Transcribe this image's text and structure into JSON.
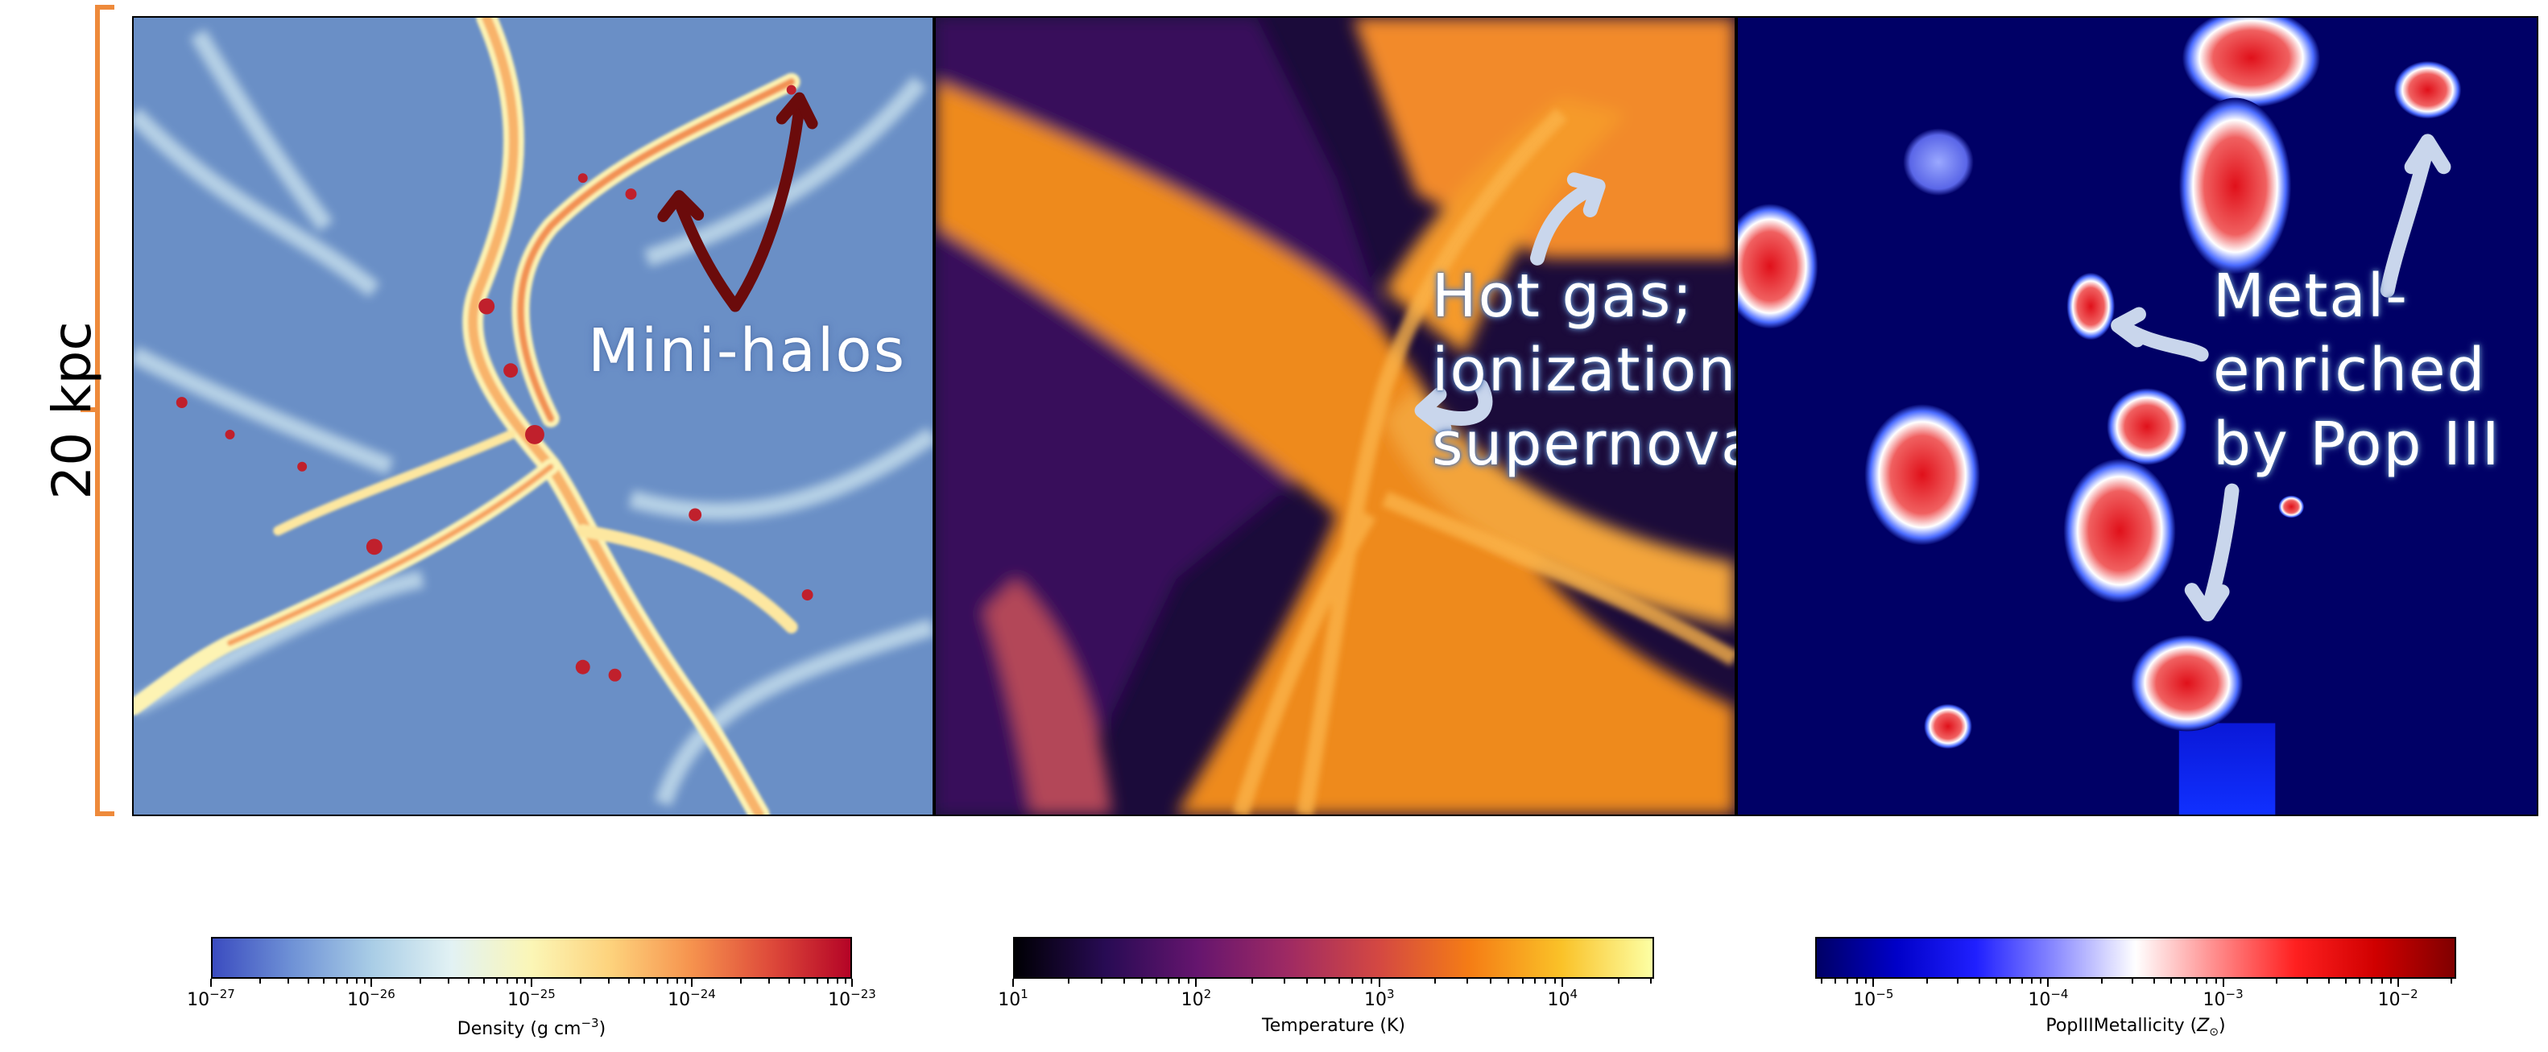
{
  "scale_bar": {
    "label": "20 kpc",
    "color": "#ee8a3b"
  },
  "panels": [
    {
      "id": "density",
      "annotation": [
        "Mini-halos"
      ]
    },
    {
      "id": "temperature",
      "annotation": [
        "Hot gas;",
        "ionization,",
        "supernovae"
      ]
    },
    {
      "id": "metallicity",
      "annotation": [
        "Metal-",
        "enriched",
        "by Pop III"
      ]
    }
  ],
  "colorbars": [
    {
      "id": "density",
      "label_text": "Density (g cm",
      "label_exp": "−3",
      "label_suffix": ")",
      "cmap": "RdYlBu_r",
      "ticks": [
        {
          "base": "10",
          "exp": "−27"
        },
        {
          "base": "10",
          "exp": "−26"
        },
        {
          "base": "10",
          "exp": "−25"
        },
        {
          "base": "10",
          "exp": "−24"
        },
        {
          "base": "10",
          "exp": "−23"
        }
      ]
    },
    {
      "id": "temperature",
      "label_text": "Temperature (K)",
      "label_exp": "",
      "label_suffix": "",
      "cmap": "inferno",
      "ticks": [
        {
          "base": "10",
          "exp": "1"
        },
        {
          "base": "10",
          "exp": "2"
        },
        {
          "base": "10",
          "exp": "3"
        },
        {
          "base": "10",
          "exp": "4"
        }
      ]
    },
    {
      "id": "metallicity",
      "label_text": "PopIIIMetallicity (",
      "label_exp": "",
      "label_suffix": ")",
      "label_symbol": "Z",
      "label_symbol_sub": "⊙",
      "cmap": "seismic",
      "ticks": [
        {
          "base": "10",
          "exp": "−5"
        },
        {
          "base": "10",
          "exp": "−4"
        },
        {
          "base": "10",
          "exp": "−3"
        },
        {
          "base": "10",
          "exp": "−2"
        }
      ]
    }
  ],
  "colors": {
    "density_bg": "#6a8fc6",
    "temperature_bg": "#1b0b3a",
    "metallicity_bg": "#000066",
    "arrow_dark": "#6b0b0b",
    "arrow_light": "#c9d6ec"
  }
}
